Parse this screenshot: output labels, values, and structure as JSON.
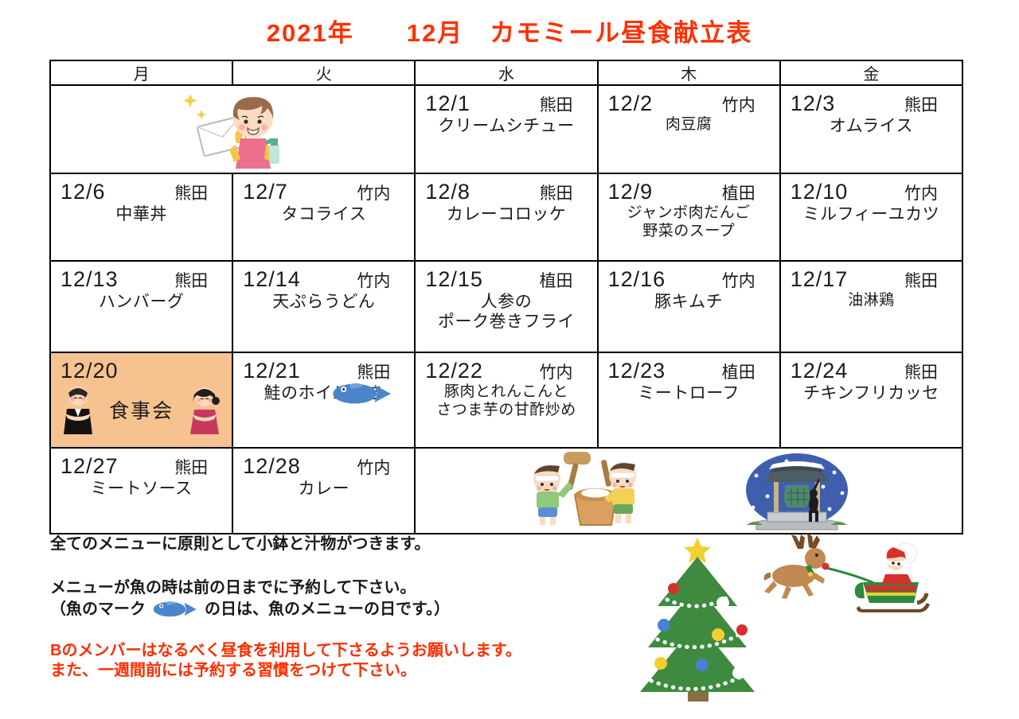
{
  "title": "2021年　　12月　カモミール昼食献立表",
  "calendar": {
    "day_headers": [
      "月",
      "火",
      "水",
      "木",
      "金"
    ],
    "weeks": [
      {
        "cells": [
          {
            "kind": "illustration",
            "illustration": "cleaning-lady",
            "colspan": 2
          },
          {
            "kind": "menu",
            "date": "12/1",
            "staff": "熊田",
            "menu": [
              "クリームシチュー"
            ]
          },
          {
            "kind": "menu",
            "date": "12/2",
            "staff": "竹内",
            "menu": [
              "肉豆腐"
            ],
            "small": true
          },
          {
            "kind": "menu",
            "date": "12/3",
            "staff": "熊田",
            "menu": [
              "オムライス"
            ]
          }
        ]
      },
      {
        "cells": [
          {
            "kind": "menu",
            "date": "12/6",
            "staff": "熊田",
            "menu": [
              "中華丼"
            ]
          },
          {
            "kind": "menu",
            "date": "12/7",
            "staff": "竹内",
            "menu": [
              "タコライス"
            ]
          },
          {
            "kind": "menu",
            "date": "12/8",
            "staff": "熊田",
            "menu": [
              "カレーコロッケ"
            ]
          },
          {
            "kind": "menu",
            "date": "12/9",
            "staff": "植田",
            "menu": [
              "ジャンボ肉だんご",
              "野菜のスープ"
            ],
            "small": true
          },
          {
            "kind": "menu",
            "date": "12/10",
            "staff": "竹内",
            "menu": [
              "ミルフィーユカツ"
            ]
          }
        ]
      },
      {
        "cells": [
          {
            "kind": "menu",
            "date": "12/13",
            "staff": "熊田",
            "menu": [
              "ハンバーグ"
            ]
          },
          {
            "kind": "menu",
            "date": "12/14",
            "staff": "竹内",
            "menu": [
              "天ぷらうどん"
            ]
          },
          {
            "kind": "menu",
            "date": "12/15",
            "staff": "植田",
            "menu": [
              "人参の",
              "ポーク巻きフライ"
            ]
          },
          {
            "kind": "menu",
            "date": "12/16",
            "staff": "竹内",
            "menu": [
              "豚キムチ"
            ]
          },
          {
            "kind": "menu",
            "date": "12/17",
            "staff": "熊田",
            "menu": [
              "油淋鶏"
            ],
            "small": true
          }
        ]
      },
      {
        "cells": [
          {
            "kind": "event",
            "date": "12/20",
            "event": "食事会",
            "highlight": true
          },
          {
            "kind": "menu",
            "date": "12/21",
            "staff": "熊田",
            "menu": [
              "鮭のホイル焼き"
            ],
            "fish": true
          },
          {
            "kind": "menu",
            "date": "12/22",
            "staff": "竹内",
            "menu": [
              "豚肉とれんこんと",
              "さつま芋の甘酢炒め"
            ],
            "small": true
          },
          {
            "kind": "menu",
            "date": "12/23",
            "staff": "植田",
            "menu": [
              "ミートローフ"
            ]
          },
          {
            "kind": "menu",
            "date": "12/24",
            "staff": "熊田",
            "menu": [
              "チキンフリカッセ"
            ]
          }
        ]
      },
      {
        "cells": [
          {
            "kind": "menu",
            "date": "12/27",
            "staff": "熊田",
            "menu": [
              "ミートソース"
            ]
          },
          {
            "kind": "menu",
            "date": "12/28",
            "staff": "竹内",
            "menu": [
              "カレー"
            ]
          },
          {
            "kind": "illustration",
            "illustration": "new-year",
            "colspan": 3
          }
        ]
      }
    ]
  },
  "notes": {
    "line1": "全てのメニューに原則として小鉢と汁物がつきます。",
    "line2": "メニューが魚の時は前の日までに予約して下さい。",
    "line3_pre": "（魚のマーク",
    "line3_post": "の日は、魚のメニューの日です。）",
    "line4": "Bのメンバーはなるべく昼食を利用して下さるようお願いします。",
    "line5": "また、一週間前には予約する習慣をつけて下さい。"
  },
  "icons": {
    "fish": "fish-icon",
    "bowing_man": "bowing-man-icon",
    "bowing_woman": "bowing-woman-icon",
    "cleaning_lady": "cleaning-lady-illustration",
    "mochi": "mochi-pounding-illustration",
    "temple_bell": "temple-bell-illustration",
    "christmas_tree": "christmas-tree-illustration",
    "santa_sleigh": "santa-sleigh-illustration"
  },
  "colors": {
    "title_red": "#ff3000",
    "note_red": "#ff2d00",
    "highlight_orange": "#f6c28f",
    "fish_blue": "#4a86c9",
    "tree_green": "#3e8b3f",
    "border_black": "#000000"
  }
}
